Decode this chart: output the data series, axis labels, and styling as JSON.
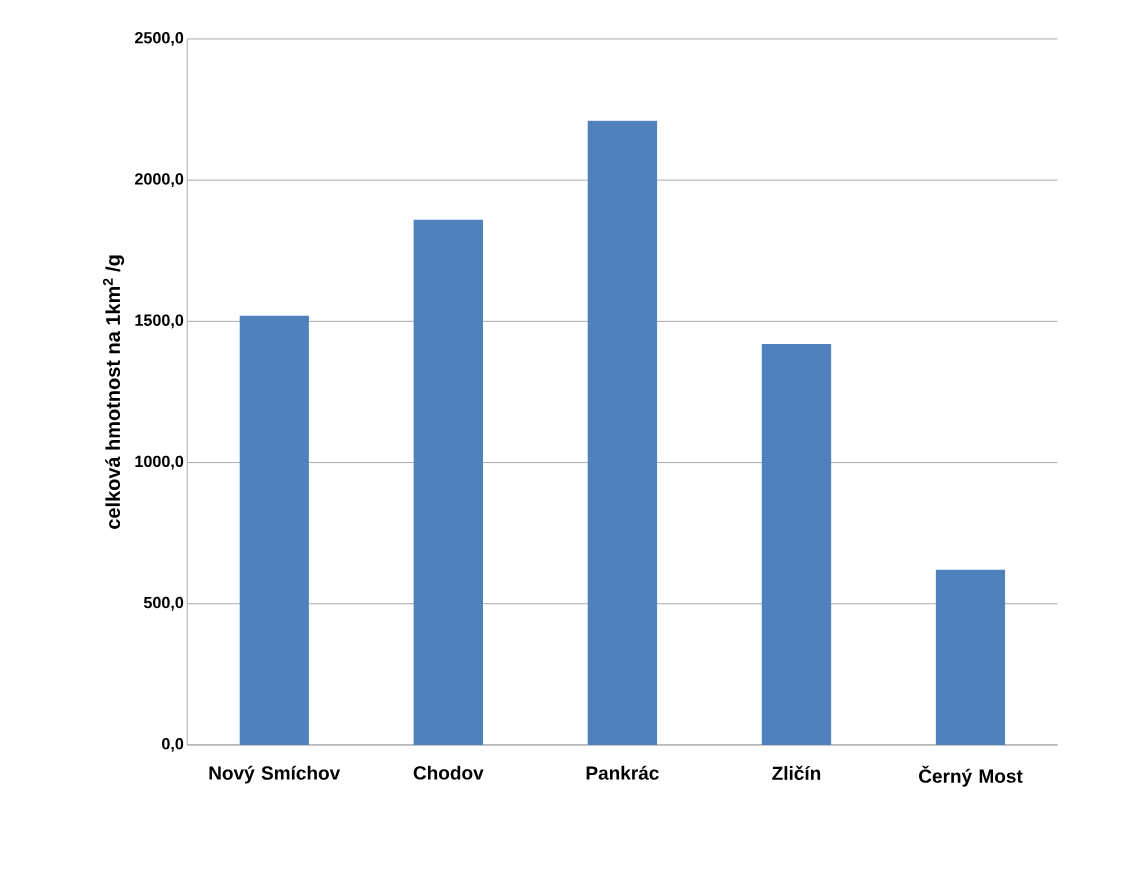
{
  "chart_data": {
    "type": "bar",
    "ylabel": "celková hmotnost na 1km$^{2}$ /g",
    "categories": [
      "Nový Smíchov",
      "Chodov",
      "Pankrác",
      "Zličín",
      "Černý Most"
    ],
    "values": [
      1520,
      1860,
      2210,
      1420,
      620
    ],
    "color": "#4f81bd",
    "ylim": [
      0,
      2500
    ],
    "yticks": [
      {
        "value": 0,
        "label": "0,0"
      },
      {
        "value": 500,
        "label": "500,0"
      },
      {
        "value": 1000,
        "label": "1000,0"
      },
      {
        "value": 1500,
        "label": "1500,0"
      },
      {
        "value": 2000,
        "label": "2000,0"
      },
      {
        "value": 2500,
        "label": "2500,0"
      }
    ],
    "grid": "y"
  }
}
